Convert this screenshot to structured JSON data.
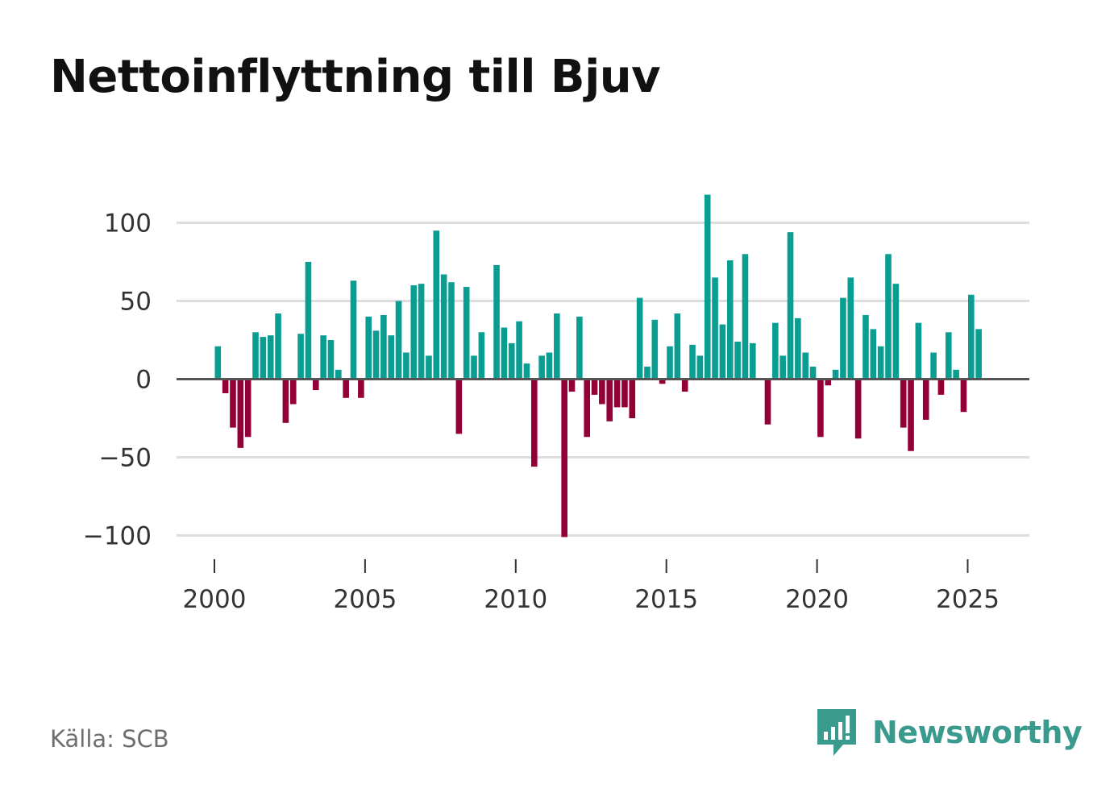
{
  "colors": {
    "positive": "#0a9e93",
    "negative": "#930037",
    "grid": "#dddddd",
    "zero": "#555555",
    "brand": "#3a9a8e"
  },
  "chart_data": {
    "type": "bar",
    "title": "Nettoinflyttning till Bjuv",
    "xlabel": "",
    "ylabel": "",
    "ylim": [
      -105,
      118
    ],
    "xlim": [
      1999.6,
      2026.8
    ],
    "yticks": [
      100,
      50,
      0,
      -50,
      -100
    ],
    "ytick_labels": [
      "100",
      "50",
      "0",
      "−50",
      "−100"
    ],
    "xticks": [
      2000,
      2005,
      2010,
      2015,
      2020,
      2025
    ],
    "xtick_labels": [
      "2000",
      "2005",
      "2010",
      "2015",
      "2020",
      "2025"
    ],
    "frequency": "quarterly",
    "start": 2000,
    "values": [
      21,
      -9,
      -31,
      -44,
      -37,
      30,
      27,
      28,
      42,
      -28,
      -16,
      29,
      75,
      -7,
      28,
      25,
      6,
      -12,
      63,
      -12,
      40,
      31,
      41,
      28,
      50,
      17,
      60,
      61,
      15,
      95,
      67,
      62,
      -35,
      59,
      15,
      30,
      0,
      73,
      33,
      23,
      37,
      10,
      -56,
      15,
      17,
      42,
      -101,
      -8,
      40,
      -37,
      -10,
      -16,
      -27,
      -18,
      -18,
      -25,
      52,
      8,
      38,
      -3,
      21,
      42,
      -8,
      22,
      15,
      118,
      65,
      35,
      76,
      24,
      80,
      23,
      0,
      -29,
      36,
      15,
      94,
      39,
      17,
      8,
      -37,
      -4,
      6,
      52,
      65,
      -38,
      41,
      32,
      21,
      80,
      61,
      -31,
      -46,
      36,
      -26,
      17,
      -10,
      30,
      6,
      -21,
      54,
      32
    ]
  },
  "source": "Källa: SCB",
  "brand": {
    "name": "Newsworthy",
    "icon": "newsworthy-logo-icon"
  }
}
